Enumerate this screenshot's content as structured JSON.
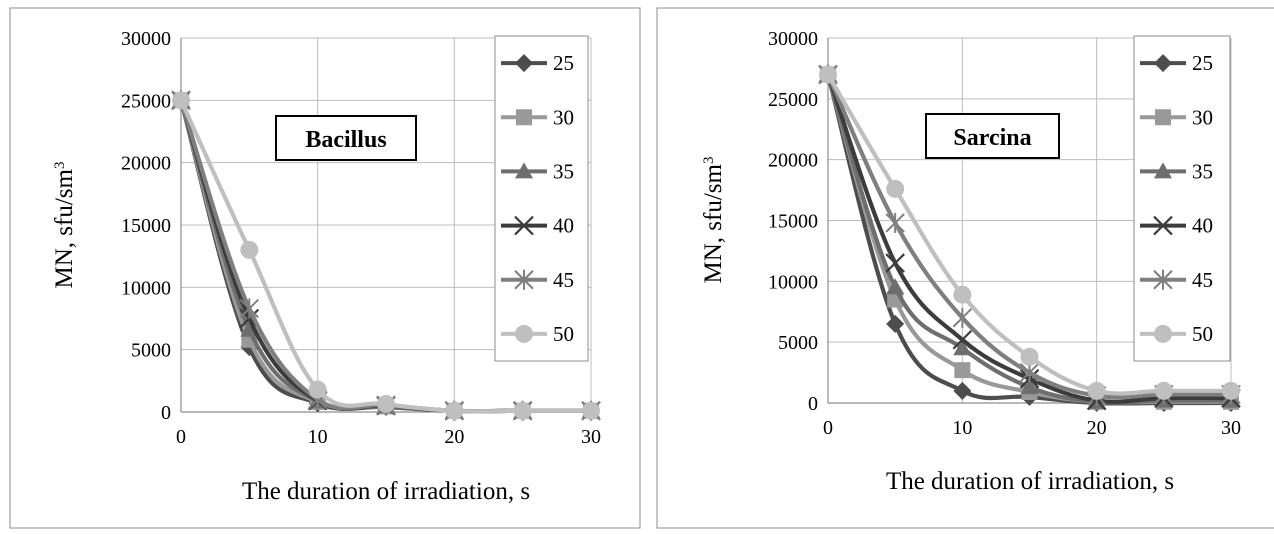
{
  "chart_data": [
    {
      "type": "line",
      "panel": "left",
      "title": "",
      "annotation": "Bacillus",
      "xlabel": "The duration of irradiation, s",
      "ylabel": "MN, sfu/sm",
      "ylabel_sup": "3",
      "xlim": [
        0,
        30
      ],
      "ylim": [
        0,
        30000
      ],
      "xticks": [
        "0",
        "10",
        "20",
        "30"
      ],
      "yticks": [
        "0",
        "5000",
        "10000",
        "15000",
        "20000",
        "25000",
        "30000"
      ],
      "grid": true,
      "legend_position": "right",
      "x": [
        0,
        5,
        10,
        15,
        20,
        25,
        30
      ],
      "series": [
        {
          "name": "25",
          "marker": "diamond",
          "color": "#4d4d4d",
          "values": [
            25000,
            5200,
            700,
            400,
            100,
            100,
            100
          ]
        },
        {
          "name": "30",
          "marker": "square",
          "color": "#999999",
          "values": [
            25000,
            5800,
            800,
            450,
            100,
            100,
            100
          ]
        },
        {
          "name": "35",
          "marker": "triangle",
          "color": "#6e6e6e",
          "values": [
            25000,
            6600,
            850,
            500,
            100,
            100,
            100
          ]
        },
        {
          "name": "40",
          "marker": "x",
          "color": "#3c3c3c",
          "values": [
            25000,
            7500,
            900,
            500,
            100,
            100,
            100
          ]
        },
        {
          "name": "45",
          "marker": "star",
          "color": "#7f7f7f",
          "values": [
            25000,
            8300,
            1000,
            550,
            100,
            100,
            100
          ]
        },
        {
          "name": "50",
          "marker": "circle",
          "color": "#bfbfbf",
          "values": [
            25000,
            13000,
            1800,
            650,
            100,
            100,
            100
          ]
        }
      ]
    },
    {
      "type": "line",
      "panel": "right",
      "title": "",
      "annotation": "Sarcina",
      "xlabel": "The duration of irradiation, s",
      "ylabel": "MN, sfu/sm",
      "ylabel_sup": "3",
      "xlim": [
        0,
        30
      ],
      "ylim": [
        0,
        30000
      ],
      "xticks": [
        "0",
        "10",
        "20",
        "30"
      ],
      "yticks": [
        "0",
        "5000",
        "10000",
        "15000",
        "20000",
        "25000",
        "30000"
      ],
      "grid": true,
      "legend_position": "right",
      "x": [
        0,
        5,
        10,
        15,
        20,
        25,
        30
      ],
      "series": [
        {
          "name": "25",
          "marker": "diamond",
          "color": "#4d4d4d",
          "values": [
            27000,
            6500,
            1000,
            500,
            0,
            0,
            0
          ]
        },
        {
          "name": "30",
          "marker": "square",
          "color": "#999999",
          "values": [
            27000,
            8500,
            2700,
            900,
            100,
            100,
            100
          ]
        },
        {
          "name": "35",
          "marker": "triangle",
          "color": "#6e6e6e",
          "values": [
            27000,
            9500,
            4500,
            1300,
            100,
            200,
            200
          ]
        },
        {
          "name": "40",
          "marker": "x",
          "color": "#3c3c3c",
          "values": [
            27000,
            11500,
            5200,
            2000,
            200,
            400,
            400
          ]
        },
        {
          "name": "45",
          "marker": "star",
          "color": "#7f7f7f",
          "values": [
            27000,
            14800,
            7000,
            2500,
            600,
            700,
            700
          ]
        },
        {
          "name": "50",
          "marker": "circle",
          "color": "#bfbfbf",
          "values": [
            27000,
            17600,
            8900,
            3800,
            1000,
            1000,
            1000
          ]
        }
      ]
    }
  ]
}
